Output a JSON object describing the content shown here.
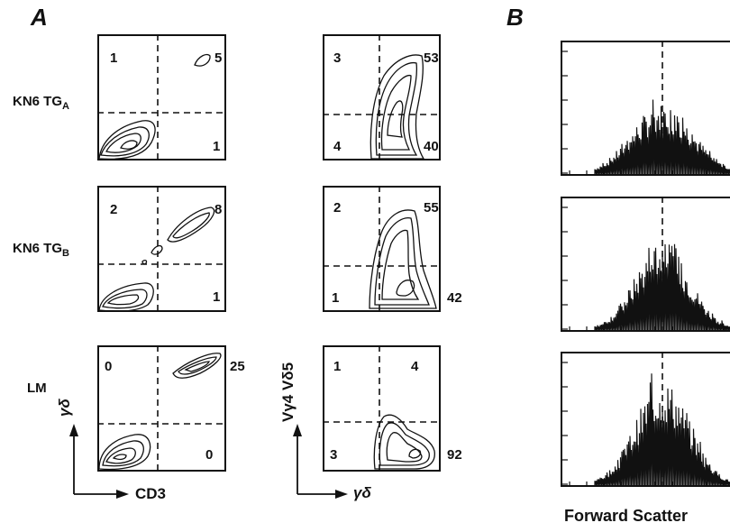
{
  "figure": {
    "panel_a": "A",
    "panel_b": "B",
    "rows": [
      {
        "main": "KN6 TG",
        "sub": "A"
      },
      {
        "main": "KN6 TG",
        "sub": "B"
      },
      {
        "main": "LM",
        "sub": ""
      }
    ],
    "col1_quadrants": [
      {
        "ul": "1",
        "ur": "5",
        "lr": "1"
      },
      {
        "ul": "2",
        "ur": "8",
        "lr": "1"
      },
      {
        "ul": "0",
        "ur": "25",
        "lr": "0"
      }
    ],
    "col2_quadrants": [
      {
        "ul": "3",
        "ur": "53",
        "ll": "4",
        "lr": "40"
      },
      {
        "ul": "2",
        "ur": "55",
        "ll": "1",
        "lr": "42"
      },
      {
        "ul": "1",
        "ur": "4",
        "ll": "3",
        "lr": "92"
      }
    ],
    "col1_x_axis": "CD3",
    "col1_y_axis": "γδ",
    "col2_x_axis": "γδ",
    "col2_y_axis": "Vγ4 Vδ5",
    "col3_x_axis": "Forward Scatter"
  }
}
